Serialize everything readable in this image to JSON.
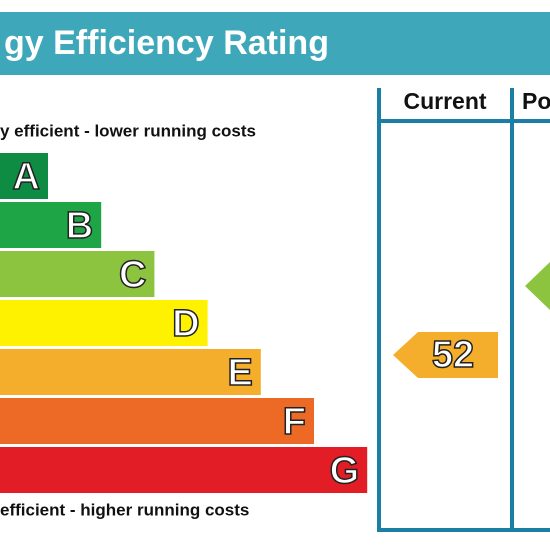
{
  "header": {
    "title": "gy Efficiency Rating"
  },
  "columns": [
    "Current",
    "Po"
  ],
  "top_note": "y efficient - lower running costs",
  "bottom_note": " efficient - higher running costs",
  "bands": [
    {
      "letter": "A",
      "color": "#0f8c44"
    },
    {
      "letter": "B",
      "color": "#1ea546"
    },
    {
      "letter": "C",
      "color": "#8cc43f"
    },
    {
      "letter": "D",
      "color": "#fff200"
    },
    {
      "letter": "E",
      "color": "#f5ae2b"
    },
    {
      "letter": "F",
      "color": "#ec6a26"
    },
    {
      "letter": "G",
      "color": "#e21d26"
    }
  ],
  "current": {
    "value": 52,
    "color": "#f5ae2b"
  }
}
